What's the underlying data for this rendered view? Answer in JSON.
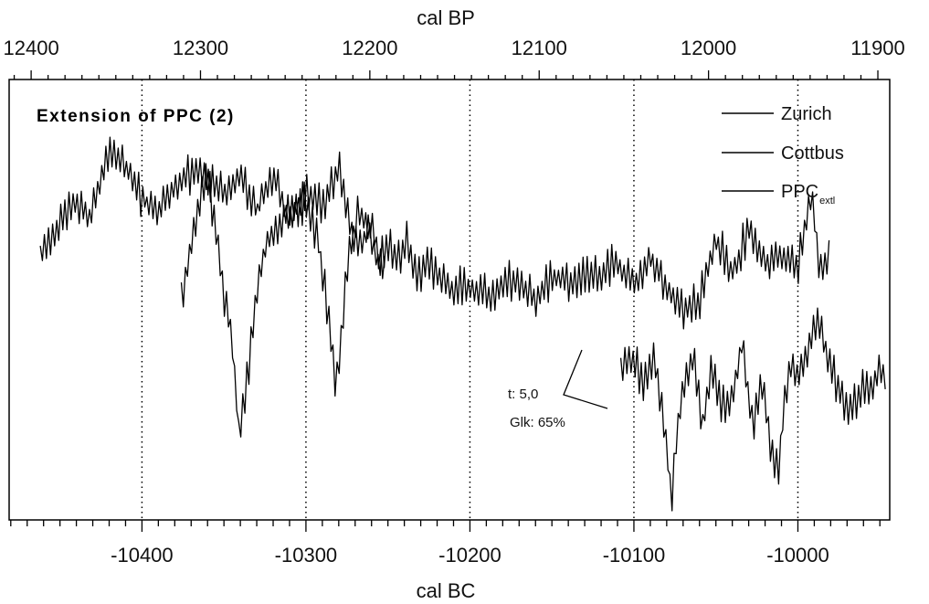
{
  "chart_data": {
    "type": "line",
    "title": "Extension of PPC (2)",
    "x_top": {
      "label": "cal BP",
      "ticks": [
        12400,
        12300,
        12200,
        12100,
        12000,
        11900
      ],
      "range": [
        12413,
        11893
      ]
    },
    "x_bottom": {
      "label": "cal BC",
      "ticks": [
        -10400,
        -10300,
        -10200,
        -10100,
        -10000
      ],
      "range": [
        -10481,
        -9944
      ],
      "dotted_reference_lines": [
        -10400,
        -10300,
        -10200,
        -10100,
        -10000
      ]
    },
    "y_axis": {
      "label": "",
      "ticks": [],
      "range": [
        0,
        100
      ]
    },
    "legend": {
      "position": "top-right",
      "entries": [
        {
          "name": "Zurich",
          "sub": ""
        },
        {
          "name": "Cottbus",
          "sub": ""
        },
        {
          "name": "PPC",
          "sub": "extl"
        }
      ]
    },
    "annotation": {
      "lines": [
        "t: 5,0",
        "Glk: 65%"
      ]
    },
    "series": [
      {
        "name": "Zurich",
        "x": [
          -10462,
          -10450,
          -10440,
          -10432,
          -10420,
          -10410,
          -10400,
          -10390,
          -10380,
          -10370,
          -10360,
          -10350,
          -10340,
          -10330,
          -10320,
          -10310,
          -10300,
          -10290,
          -10280,
          -10270,
          -10260,
          -10252
        ],
        "y": [
          60,
          67,
          72,
          68,
          84,
          80,
          73,
          70,
          76,
          79,
          78,
          74,
          78,
          70,
          78,
          68,
          74,
          72,
          80,
          62,
          66,
          56
        ]
      },
      {
        "name": "Cottbus",
        "x": [
          -10376,
          -10370,
          -10365,
          -10360,
          -10355,
          -10350,
          -10345,
          -10341,
          -10337,
          -10330,
          -10325,
          -10318,
          -10310,
          -10300,
          -10292,
          -10286,
          -10282,
          -10279,
          -10274,
          -10268,
          -10262,
          -10256,
          -10250,
          -10244,
          -10238,
          -10232,
          -10226,
          -10218,
          -10210,
          -10200,
          -10190,
          -10180,
          -10170,
          -10160,
          -10150,
          -10140,
          -10130,
          -10120,
          -10110,
          -10100,
          -10090,
          -10080,
          -10070,
          -10060,
          -10050,
          -10040,
          -10030,
          -10020,
          -10010,
          -10000,
          -9992,
          -9986,
          -9980
        ],
        "y": [
          50,
          62,
          72,
          78,
          66,
          52,
          40,
          20,
          28,
          52,
          62,
          66,
          70,
          72,
          62,
          46,
          30,
          40,
          60,
          70,
          66,
          58,
          63,
          58,
          64,
          54,
          60,
          54,
          52,
          53,
          51,
          53,
          54,
          50,
          55,
          54,
          55,
          56,
          58,
          53,
          60,
          52,
          48,
          50,
          64,
          56,
          66,
          58,
          60,
          57,
          74,
          56,
          60
        ]
      },
      {
        "name": "PPC",
        "x": [
          -10108,
          -10100,
          -10094,
          -10088,
          -10082,
          -10077,
          -10074,
          -10070,
          -10064,
          -10058,
          -10052,
          -10046,
          -10040,
          -10034,
          -10028,
          -10022,
          -10016,
          -10012,
          -10008,
          -10004,
          -10000,
          -9994,
          -9988,
          -9982,
          -9976,
          -9970,
          -9965,
          -9960,
          -9955,
          -9950,
          -9946
        ],
        "y": [
          34,
          37,
          31,
          38,
          24,
          5,
          18,
          30,
          38,
          22,
          34,
          26,
          28,
          40,
          22,
          31,
          16,
          10,
          28,
          36,
          32,
          38,
          46,
          37,
          31,
          24,
          26,
          30,
          28,
          34,
          32
        ]
      }
    ]
  }
}
